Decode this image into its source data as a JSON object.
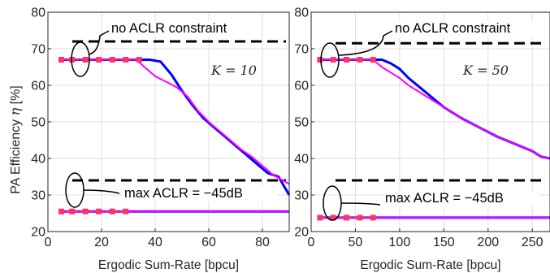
{
  "ylabel": "PA Efficiency",
  "ylabel_symbol": "η",
  "ylabel_unit": "[%]",
  "colors": {
    "blue": "#0000ff",
    "magenta": "#ff00ff",
    "marker": "#ff3366",
    "dashed": "#000000"
  },
  "chart_data": [
    {
      "type": "line",
      "panel": "left",
      "xlabel": "Ergodic Sum-Rate [bpcu]",
      "xlim": [
        0,
        90
      ],
      "ylim": [
        20,
        80
      ],
      "xticks": [
        0,
        20,
        40,
        60,
        80
      ],
      "yticks": [
        20,
        30,
        40,
        50,
        60,
        70,
        80
      ],
      "grid": true,
      "k_label": "K = 10",
      "annotations": {
        "upper": "no ACLR constraint",
        "lower": "max ACLR = −45dB"
      },
      "dashed_levels": [
        72,
        34
      ],
      "series": [
        {
          "color": "blue",
          "x": [
            5,
            38,
            42,
            46,
            50,
            54,
            58,
            62,
            66,
            70,
            74,
            78,
            82,
            86,
            90
          ],
          "y": [
            67,
            67,
            66.5,
            63,
            58.5,
            54.5,
            51,
            48.5,
            46,
            43.5,
            41,
            38.5,
            36,
            35,
            30
          ]
        },
        {
          "color": "magenta",
          "x": [
            5,
            33,
            36,
            40,
            44,
            48,
            52,
            56,
            60,
            64,
            68,
            72,
            76,
            80,
            84,
            90
          ],
          "y": [
            67,
            67,
            65,
            62.5,
            61,
            59.5,
            57,
            53,
            50,
            47.5,
            45,
            42.5,
            40.5,
            38,
            35.5,
            33
          ]
        },
        {
          "color": "marker",
          "markers": true,
          "x": [
            5,
            9,
            14,
            19,
            24,
            29,
            34
          ],
          "y": [
            67,
            67,
            67,
            67,
            67,
            67,
            67
          ]
        },
        {
          "color": "blue",
          "x": [
            5,
            90
          ],
          "y": [
            25.5,
            25.5
          ]
        },
        {
          "color": "magenta",
          "x": [
            5,
            90
          ],
          "y": [
            25.5,
            25.5
          ]
        },
        {
          "color": "marker",
          "markers": true,
          "x": [
            5,
            9,
            14,
            19,
            24,
            29
          ],
          "y": [
            25.5,
            25.5,
            25.5,
            25.5,
            25.5,
            25.5
          ]
        }
      ]
    },
    {
      "type": "line",
      "panel": "right",
      "xlabel": "Ergodic Sum-Rate [bpcu]",
      "xlim": [
        0,
        270
      ],
      "ylim": [
        20,
        80
      ],
      "xticks": [
        0,
        50,
        100,
        150,
        200,
        250
      ],
      "yticks": [
        20,
        30,
        40,
        50,
        60,
        70,
        80
      ],
      "grid": true,
      "k_label": "K = 50",
      "annotations": {
        "upper": "no ACLR constraint",
        "lower": "max ACLR = −45dB"
      },
      "dashed_levels": [
        71.5,
        34
      ],
      "series": [
        {
          "color": "blue",
          "x": [
            10,
            80,
            90,
            100,
            110,
            130,
            150,
            170,
            190,
            210,
            230,
            250,
            260,
            270
          ],
          "y": [
            67,
            67,
            66,
            64.5,
            62,
            58,
            54,
            51,
            48.5,
            46,
            44,
            42,
            40.5,
            40
          ]
        },
        {
          "color": "magenta",
          "x": [
            10,
            70,
            80,
            90,
            100,
            110,
            130,
            150,
            170,
            190,
            210,
            230,
            250,
            260,
            270
          ],
          "y": [
            67,
            67,
            65,
            63.5,
            62,
            60,
            57,
            54,
            51,
            48.5,
            46,
            44,
            42,
            40.5,
            40
          ]
        },
        {
          "color": "marker",
          "markers": true,
          "x": [
            10,
            25,
            40,
            55,
            70
          ],
          "y": [
            67,
            67,
            67,
            67,
            67
          ]
        },
        {
          "color": "blue",
          "x": [
            10,
            270
          ],
          "y": [
            23.8,
            23.8
          ]
        },
        {
          "color": "magenta",
          "x": [
            10,
            270
          ],
          "y": [
            23.8,
            23.8
          ]
        },
        {
          "color": "marker",
          "markers": true,
          "x": [
            10,
            25,
            40,
            55,
            70
          ],
          "y": [
            23.8,
            23.8,
            23.8,
            23.8,
            23.8
          ]
        }
      ]
    }
  ]
}
